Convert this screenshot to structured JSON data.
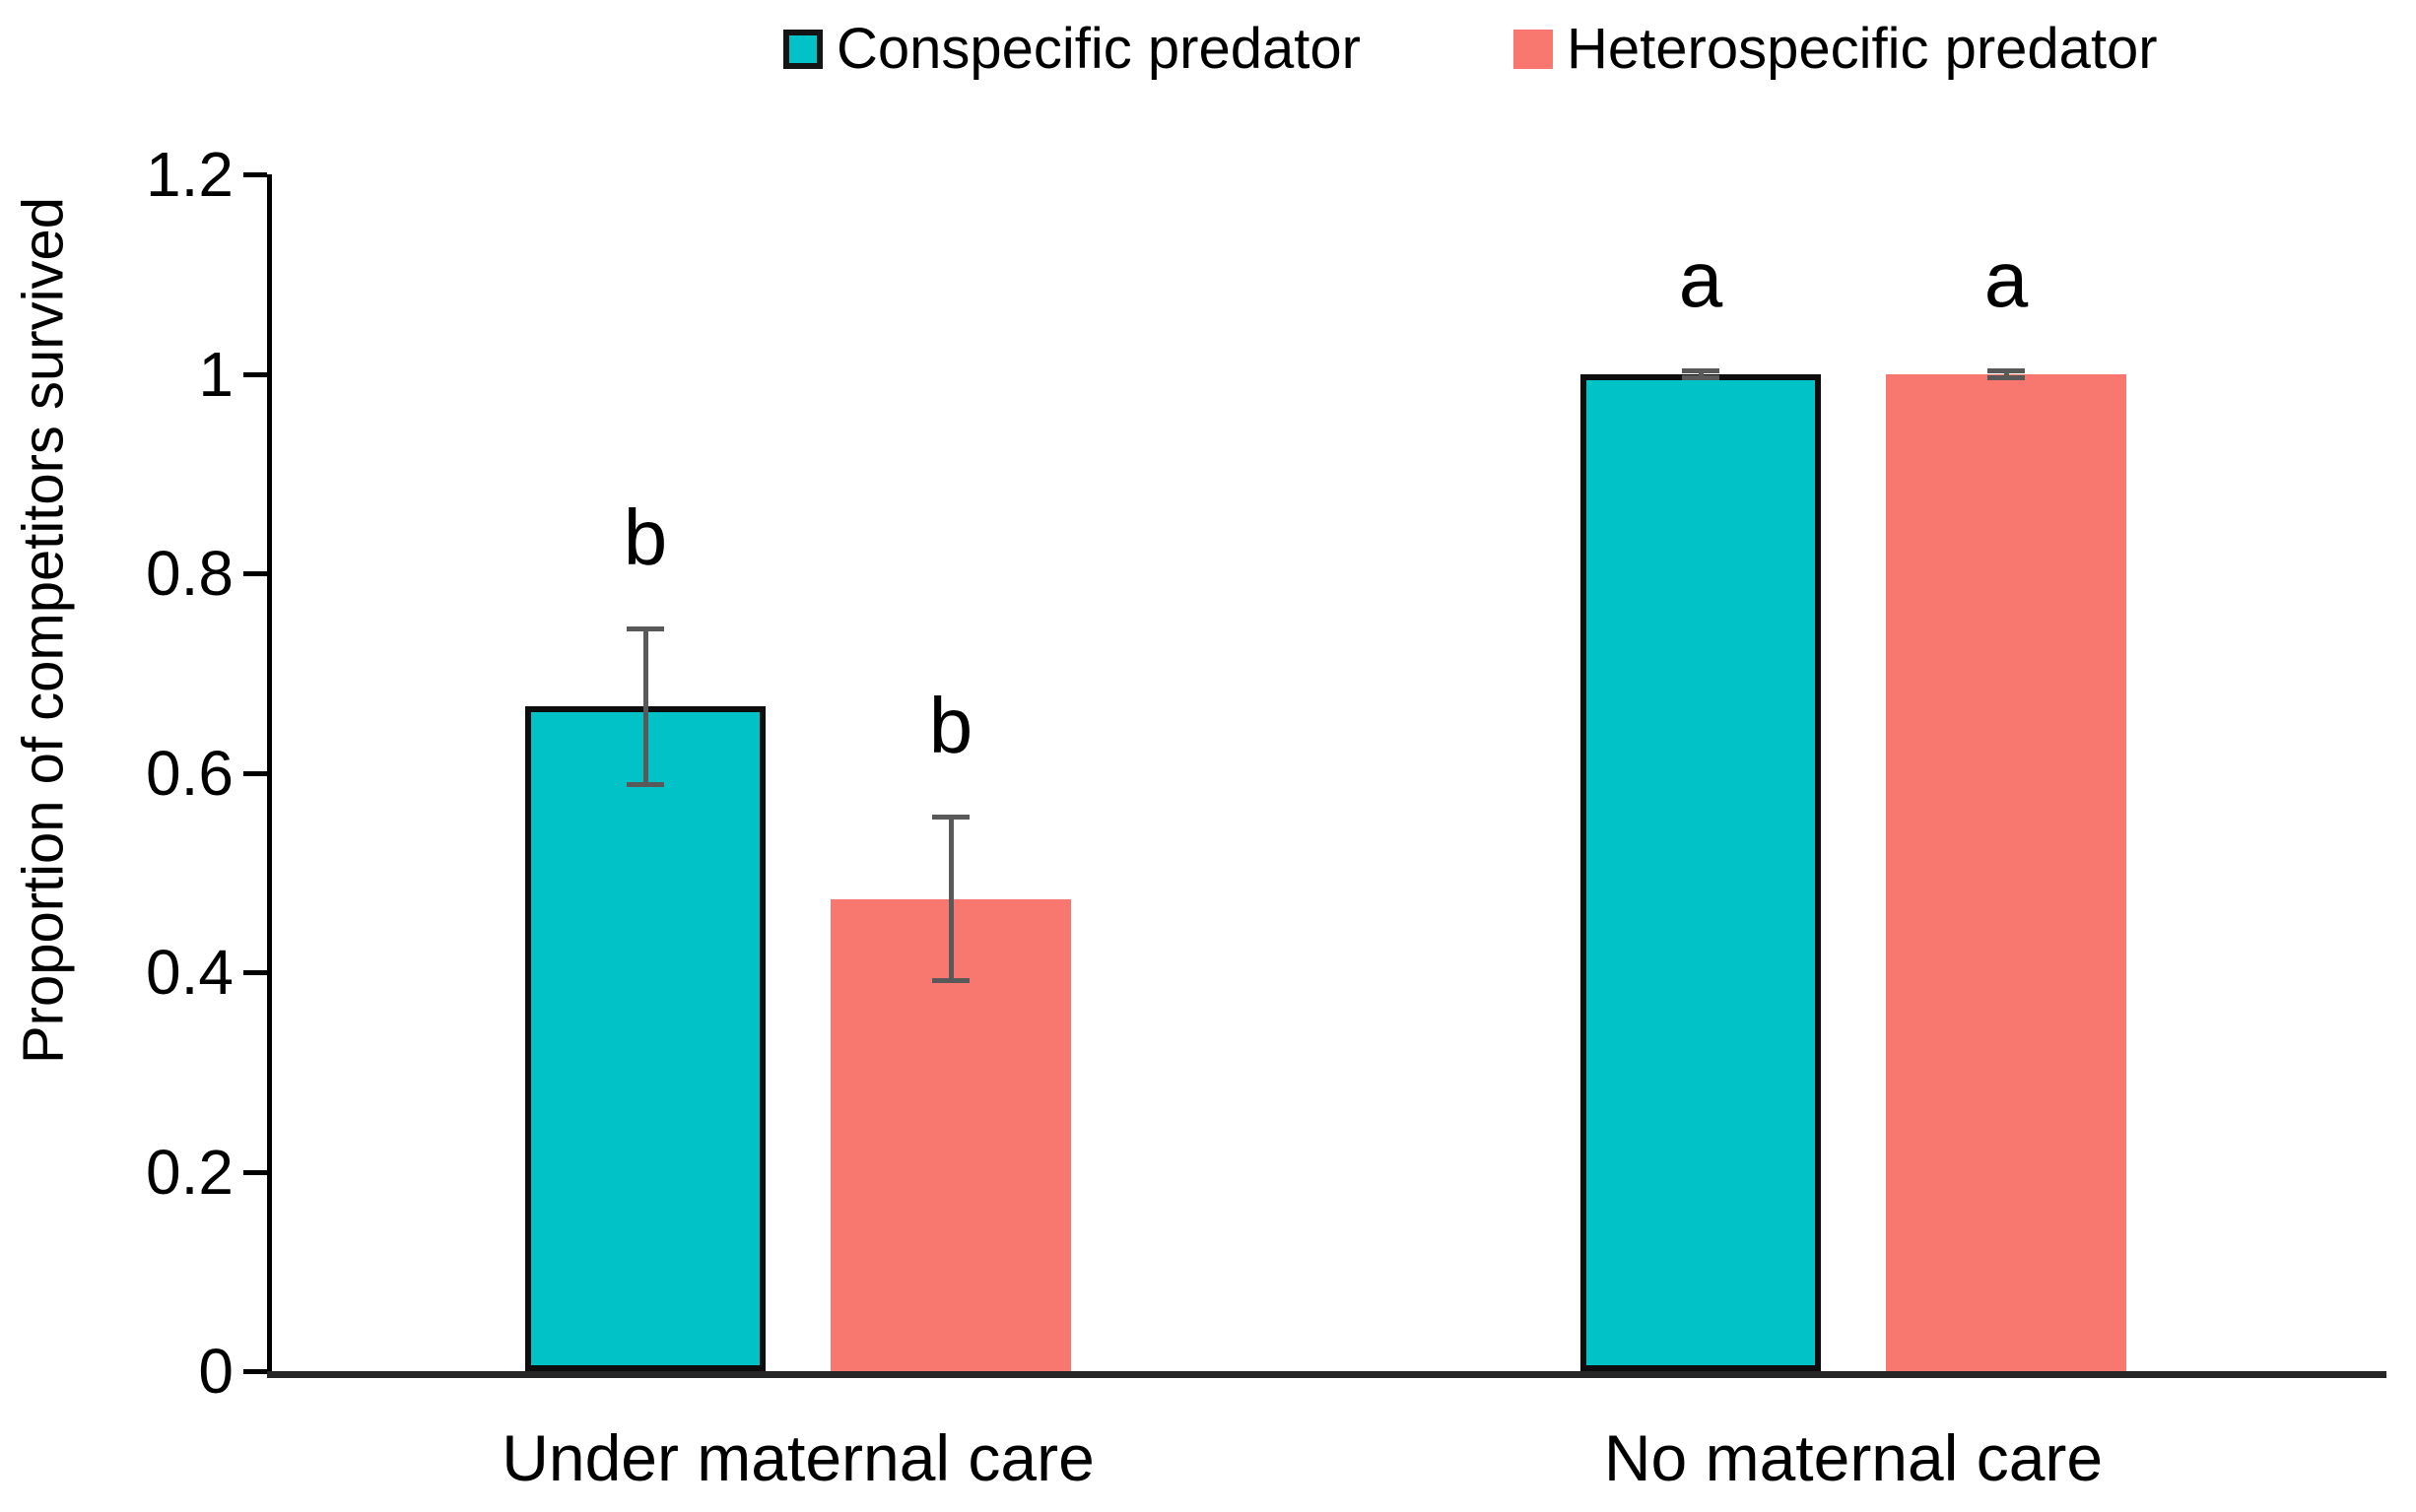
{
  "chart_data": {
    "type": "bar",
    "title": "",
    "ylabel": "Proportion of competitors survived",
    "xlabel": "",
    "ylim": [
      0,
      1.2
    ],
    "yticks": [
      {
        "value": 0,
        "label": "0"
      },
      {
        "value": 0.2,
        "label": "0.2"
      },
      {
        "value": 0.4,
        "label": "0.4"
      },
      {
        "value": 0.6,
        "label": "0.6"
      },
      {
        "value": 0.8,
        "label": "0.8"
      },
      {
        "value": 1,
        "label": "1"
      },
      {
        "value": 1.2,
        "label": "1.2"
      }
    ],
    "categories": [
      "Under maternal care",
      "No maternal care"
    ],
    "series": [
      {
        "name": "Conspecific predator",
        "color": "#00C2C7",
        "outlined": true,
        "values": [
          0.667,
          1.0
        ],
        "error_upper": [
          0.078,
          0.003
        ],
        "error_lower": [
          0.078,
          0.003
        ],
        "sig_labels": [
          "b",
          "a"
        ]
      },
      {
        "name": "Heterospecific predator",
        "color": "#F8786F",
        "outlined": false,
        "values": [
          0.473,
          1.0
        ],
        "error_upper": [
          0.083,
          0.003
        ],
        "error_lower": [
          0.081,
          0.003
        ],
        "sig_labels": [
          "b",
          "a"
        ]
      }
    ],
    "error_bar_color": "#595959",
    "bar_outline_color": "#0d0d0d",
    "axis_color": "#000000",
    "legend_position": "top",
    "grid": false
  }
}
